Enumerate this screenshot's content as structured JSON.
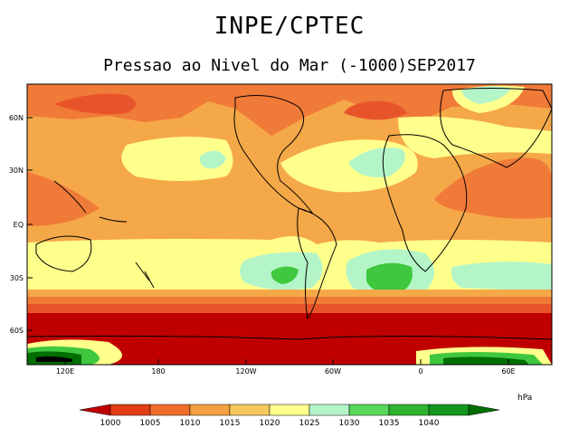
{
  "header": {
    "title": "INPE/CPTEC",
    "subtitle": "Pressao ao Nivel do Mar (-1000)SEP2017"
  },
  "map": {
    "lat_labels": [
      "60N",
      "30N",
      "EQ",
      "30S",
      "60S"
    ],
    "lon_labels": [
      "120E",
      "180",
      "120W",
      "60W",
      "0",
      "60E"
    ]
  },
  "legend": {
    "unit": "hPa",
    "values": [
      "1000",
      "1005",
      "1010",
      "1015",
      "1020",
      "1025",
      "1030",
      "1035",
      "1040"
    ],
    "colors": [
      "#bf0000",
      "#e23c14",
      "#f06e2c",
      "#f5a040",
      "#f7c85a",
      "#ffff8c",
      "#b4f5c8",
      "#58d75a",
      "#2eb42e",
      "#14961e",
      "#006e00"
    ]
  },
  "colors": {
    "low_deep": "#c00000",
    "low": "#e8542a",
    "mid_low": "#f07a38",
    "mid": "#f5a848",
    "high_yellow": "#ffff8c",
    "high_mint": "#b4f5c8",
    "high_green": "#3fc83f"
  }
}
